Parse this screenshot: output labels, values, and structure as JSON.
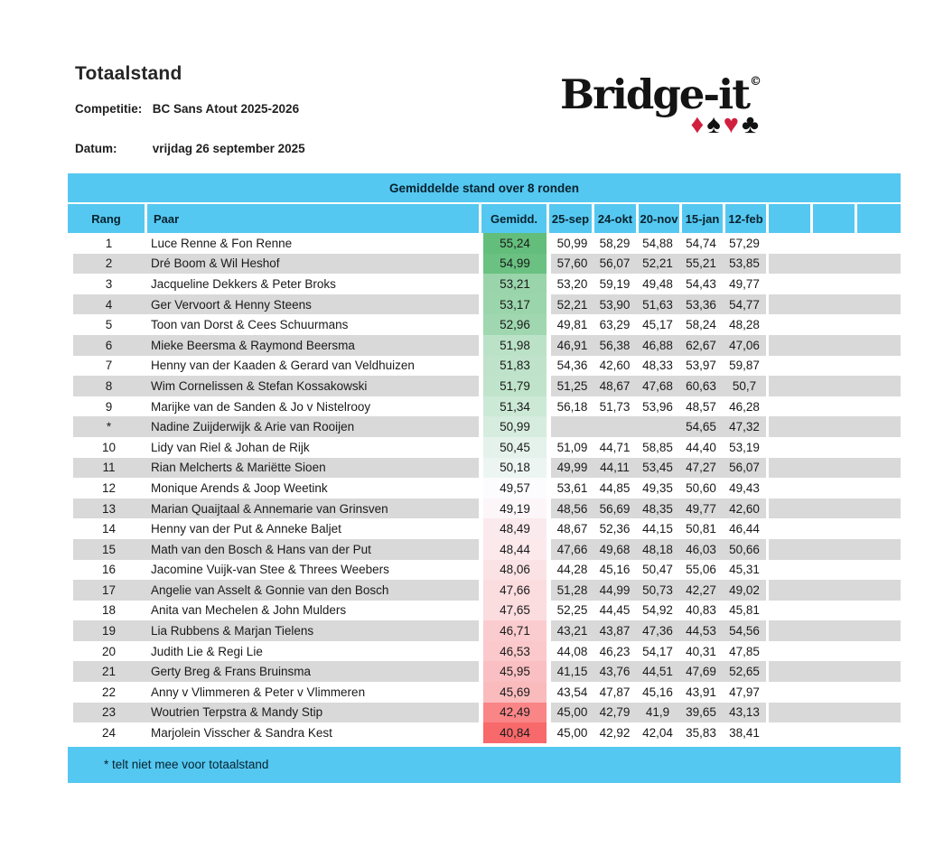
{
  "page": {
    "title": "Totaalstand",
    "competition_label": "Competitie:",
    "competition_value": "BC Sans Atout 2025-2026",
    "date_label": "Datum:",
    "date_value": "vrijdag 26 september 2025"
  },
  "logo": {
    "text": "Bridge-it",
    "copyright": "©",
    "suits": [
      {
        "name": "diamond",
        "glyph": "♦",
        "color": "#D11F3F"
      },
      {
        "name": "spade",
        "glyph": "♠",
        "color": "#121212"
      },
      {
        "name": "heart",
        "glyph": "♥",
        "color": "#D11F3F"
      },
      {
        "name": "club",
        "glyph": "♣",
        "color": "#121212"
      }
    ]
  },
  "table": {
    "title": "Gemiddelde stand over 8 ronden",
    "columns": {
      "rank": "Rang",
      "pair": "Paar",
      "average": "Gemidd.",
      "dates": [
        "25-sep",
        "24-okt",
        "20-nov",
        "15-jan",
        "12-feb"
      ],
      "empty_count": 3
    },
    "colors": {
      "header_blue": "#55C8F1",
      "stripe_gray": "#D9D9D9",
      "scale_max_green": "#63BE7B",
      "scale_mid_white": "#FCFCFF",
      "scale_min_red": "#F8696B"
    },
    "rows": [
      {
        "rank": "1",
        "pair": "Luce Renne & Fon Renne",
        "average": "55,24",
        "average_color": "#63BE7B",
        "scores": [
          "50,99",
          "58,29",
          "54,88",
          "54,74",
          "57,29"
        ]
      },
      {
        "rank": "2",
        "pair": "Dré Boom & Wil Heshof",
        "average": "54,99",
        "average_color": "#6AC181",
        "scores": [
          "57,60",
          "56,07",
          "52,21",
          "55,21",
          "53,85"
        ]
      },
      {
        "rank": "3",
        "pair": "Jacqueline Dekkers & Peter Broks",
        "average": "53,21",
        "average_color": "#9AD4AA",
        "scores": [
          "53,20",
          "59,19",
          "49,48",
          "54,43",
          "49,77"
        ]
      },
      {
        "rank": "4",
        "pair": "Ger Vervoort & Henny Steens",
        "average": "53,17",
        "average_color": "#9BD5AB",
        "scores": [
          "52,21",
          "53,90",
          "51,63",
          "53,36",
          "54,77"
        ]
      },
      {
        "rank": "5",
        "pair": "Toon van Dorst & Cees Schuurmans",
        "average": "52,96",
        "average_color": "#A0D7B0",
        "scores": [
          "49,81",
          "63,29",
          "45,17",
          "58,24",
          "48,28"
        ]
      },
      {
        "rank": "6",
        "pair": "Mieke Beersma & Raymond Beersma",
        "average": "51,98",
        "average_color": "#BBE2C7",
        "scores": [
          "46,91",
          "56,38",
          "46,88",
          "62,67",
          "47,06"
        ]
      },
      {
        "rank": "7",
        "pair": "Henny van der Kaaden & Gerard van Veldhuizen",
        "average": "51,83",
        "average_color": "#BFE3CA",
        "scores": [
          "54,36",
          "42,60",
          "48,33",
          "53,97",
          "59,87"
        ]
      },
      {
        "rank": "8",
        "pair": "Wim Cornelissen & Stefan Kossakowski",
        "average": "51,79",
        "average_color": "#C0E4CB",
        "scores": [
          "51,25",
          "48,67",
          "47,68",
          "60,63",
          "50,7"
        ]
      },
      {
        "rank": "9",
        "pair": "Marijke van de Sanden & Jo v Nistelrooy",
        "average": "51,34",
        "average_color": "#CCE9D6",
        "scores": [
          "56,18",
          "51,73",
          "53,96",
          "48,57",
          "46,28"
        ]
      },
      {
        "rank": "*",
        "pair": "Nadine Zuijderwijk & Arie van Rooijen",
        "average": "50,99",
        "average_color": "#D6ECDE",
        "scores": [
          "",
          "",
          "",
          "54,65",
          "47,32"
        ]
      },
      {
        "rank": "10",
        "pair": "Lidy van Riel & Johan de Rijk",
        "average": "50,45",
        "average_color": "#E4F2EB",
        "scores": [
          "51,09",
          "44,71",
          "58,85",
          "44,40",
          "53,19"
        ]
      },
      {
        "rank": "11",
        "pair": "Rian Melcherts & Mariëtte Sioen",
        "average": "50,18",
        "average_color": "#ECF5F1",
        "scores": [
          "49,99",
          "44,11",
          "53,45",
          "47,27",
          "56,07"
        ]
      },
      {
        "rank": "12",
        "pair": "Monique Arends & Joop Weetink",
        "average": "49,57",
        "average_color": "#FCFCFF",
        "scores": [
          "53,61",
          "44,85",
          "49,35",
          "50,60",
          "49,43"
        ]
      },
      {
        "rank": "13",
        "pair": "Marian Quaijtaal & Annemarie van Grinsven",
        "average": "49,19",
        "average_color": "#FCF6F9",
        "scores": [
          "48,56",
          "56,69",
          "48,35",
          "49,77",
          "42,60"
        ]
      },
      {
        "rank": "14",
        "pair": "Henny van der Put & Anneke Baljet",
        "average": "48,49",
        "average_color": "#FBEAED",
        "scores": [
          "48,67",
          "52,36",
          "44,15",
          "50,81",
          "46,44"
        ]
      },
      {
        "rank": "15",
        "pair": "Math van den Bosch & Hans van der Put",
        "average": "48,44",
        "average_color": "#FBE9EC",
        "scores": [
          "47,66",
          "49,68",
          "48,18",
          "46,03",
          "50,66"
        ]
      },
      {
        "rank": "16",
        "pair": "Jacomine Vuijk-van Stee & Threes Weebers",
        "average": "48,06",
        "average_color": "#FBE3E5",
        "scores": [
          "44,28",
          "45,16",
          "50,47",
          "55,06",
          "45,31"
        ]
      },
      {
        "rank": "17",
        "pair": "Angelie van Asselt & Gonnie van den Bosch",
        "average": "47,66",
        "average_color": "#FBDCDF",
        "scores": [
          "51,28",
          "44,99",
          "50,73",
          "42,27",
          "49,02"
        ]
      },
      {
        "rank": "18",
        "pair": "Anita van Mechelen & John Mulders",
        "average": "47,65",
        "average_color": "#FBDCDF",
        "scores": [
          "52,25",
          "44,45",
          "54,92",
          "40,83",
          "45,81"
        ]
      },
      {
        "rank": "19",
        "pair": "Lia Rubbens & Marjan Tielens",
        "average": "46,71",
        "average_color": "#FBCCCF",
        "scores": [
          "43,21",
          "43,87",
          "47,36",
          "44,53",
          "54,56"
        ]
      },
      {
        "rank": "20",
        "pair": "Judith Lie & Regi Lie",
        "average": "46,53",
        "average_color": "#FBC9CC",
        "scores": [
          "44,08",
          "46,23",
          "54,17",
          "40,31",
          "47,85"
        ]
      },
      {
        "rank": "21",
        "pair": "Gerty Breg & Frans Bruinsma",
        "average": "45,95",
        "average_color": "#FABFC2",
        "scores": [
          "41,15",
          "43,76",
          "44,51",
          "47,69",
          "52,65"
        ]
      },
      {
        "rank": "22",
        "pair": "Anny v Vlimmeren & Peter v Vlimmeren",
        "average": "45,69",
        "average_color": "#FABBBD",
        "scores": [
          "43,54",
          "47,87",
          "45,16",
          "43,91",
          "47,97"
        ]
      },
      {
        "rank": "23",
        "pair": "Woutrien Terpstra & Mandy Stip",
        "average": "42,49",
        "average_color": "#F98587",
        "scores": [
          "45,00",
          "42,79",
          "41,9",
          "39,65",
          "43,13"
        ]
      },
      {
        "rank": "24",
        "pair": "Marjolein Visscher & Sandra Kest",
        "average": "40,84",
        "average_color": "#F8696B",
        "scores": [
          "45,00",
          "42,92",
          "42,04",
          "35,83",
          "38,41"
        ]
      }
    ],
    "footnote": "* telt niet mee voor totaalstand"
  }
}
